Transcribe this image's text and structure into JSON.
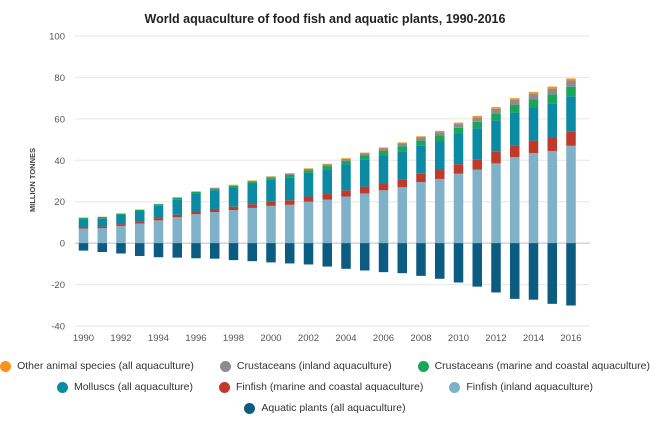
{
  "chart_data": {
    "type": "bar",
    "stacked": true,
    "title": "World aquaculture of food fish and aquatic plants, 1990-2016",
    "ylabel": "MILLION TONNES",
    "xlabel": "",
    "ylim": [
      -40,
      100
    ],
    "yticks": [
      -40,
      -20,
      0,
      20,
      40,
      60,
      80,
      100
    ],
    "xtick_labels": [
      "1990",
      "1992",
      "1994",
      "1996",
      "1998",
      "2000",
      "2002",
      "2004",
      "2006",
      "2008",
      "2010",
      "2012",
      "2014",
      "2016"
    ],
    "grid": true,
    "legend_position": "bottom",
    "categories": [
      "1990",
      "1991",
      "1992",
      "1993",
      "1994",
      "1995",
      "1996",
      "1997",
      "1998",
      "1999",
      "2000",
      "2001",
      "2002",
      "2003",
      "2004",
      "2005",
      "2006",
      "2007",
      "2008",
      "2009",
      "2010",
      "2011",
      "2012",
      "2013",
      "2014",
      "2015",
      "2016"
    ],
    "series": [
      {
        "name": "Finfish (inland aquaculture)",
        "color": "#7fb2c9",
        "values": [
          7.0,
          7.2,
          8.3,
          9.5,
          11.0,
          12.5,
          14.0,
          15.0,
          16.0,
          17.0,
          18.0,
          18.5,
          20.0,
          21.0,
          22.5,
          24.0,
          25.5,
          27.0,
          29.5,
          31.0,
          33.5,
          35.5,
          38.5,
          41.5,
          43.5,
          44.5,
          47.0
        ]
      },
      {
        "name": "Finfish (marine and coastal aquaculture)",
        "color": "#c0392b",
        "values": [
          0.8,
          0.8,
          0.9,
          1.0,
          1.1,
          1.2,
          1.3,
          1.5,
          1.6,
          1.8,
          2.0,
          2.2,
          2.5,
          2.7,
          3.0,
          3.3,
          3.5,
          3.8,
          4.0,
          4.3,
          4.6,
          5.0,
          5.6,
          5.8,
          6.0,
          6.5,
          6.8
        ]
      },
      {
        "name": "Molluscs (all aquaculture)",
        "color": "#0b8aa3",
        "values": [
          3.8,
          4.0,
          4.4,
          5.0,
          6.0,
          7.5,
          8.7,
          9.0,
          9.3,
          10.0,
          10.6,
          11.1,
          11.4,
          12.0,
          12.5,
          13.0,
          13.3,
          13.6,
          13.5,
          14.0,
          14.6,
          15.0,
          15.2,
          15.7,
          16.0,
          16.5,
          17.1
        ]
      },
      {
        "name": "Crustaceans (marine and coastal aquaculture)",
        "color": "#1aa55a",
        "values": [
          0.6,
          0.6,
          0.6,
          0.6,
          0.7,
          0.7,
          0.7,
          0.8,
          0.8,
          0.9,
          1.0,
          1.1,
          1.2,
          1.5,
          1.7,
          2.0,
          2.2,
          2.4,
          2.5,
          2.7,
          3.0,
          3.1,
          3.4,
          3.7,
          4.0,
          4.3,
          4.6
        ]
      },
      {
        "name": "Crustaceans (inland aquaculture)",
        "color": "#8c8c8c",
        "values": [
          0.1,
          0.1,
          0.1,
          0.1,
          0.1,
          0.2,
          0.2,
          0.3,
          0.3,
          0.4,
          0.5,
          0.6,
          0.7,
          0.8,
          0.9,
          1.0,
          1.2,
          1.3,
          1.5,
          1.6,
          1.8,
          2.0,
          2.2,
          2.4,
          2.6,
          2.8,
          3.0
        ]
      },
      {
        "name": "Other animal species (all aquaculture)",
        "color": "#f7941d",
        "values": [
          0.1,
          0.1,
          0.1,
          0.1,
          0.1,
          0.1,
          0.1,
          0.2,
          0.2,
          0.2,
          0.2,
          0.3,
          0.3,
          0.3,
          0.4,
          0.4,
          0.5,
          0.5,
          0.6,
          0.6,
          0.7,
          0.8,
          0.8,
          0.9,
          0.9,
          1.0,
          1.0
        ]
      },
      {
        "name": "Aquatic plants (all aquaculture)",
        "color": "#0c5b80",
        "negative": true,
        "values": [
          -3.6,
          -4.3,
          -5.0,
          -6.2,
          -6.8,
          -7.0,
          -7.3,
          -7.5,
          -8.2,
          -8.7,
          -9.3,
          -9.8,
          -10.3,
          -11.3,
          -12.4,
          -13.2,
          -14.0,
          -14.5,
          -15.8,
          -17.2,
          -19.0,
          -21.0,
          -23.8,
          -26.9,
          -27.3,
          -29.3,
          -30.1
        ]
      }
    ],
    "legend_rows": [
      [
        5,
        4,
        3
      ],
      [
        2,
        1,
        0
      ],
      [
        6
      ]
    ]
  }
}
